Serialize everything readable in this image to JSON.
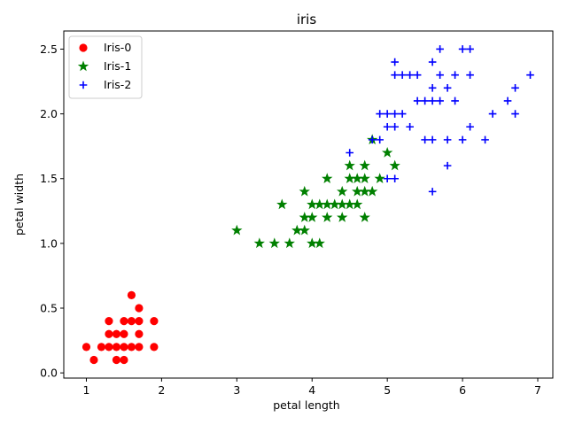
{
  "chart_data": {
    "type": "scatter",
    "title": "iris",
    "xlabel": "petal length",
    "ylabel": "petal width",
    "xlim": [
      0.7,
      7.2
    ],
    "ylim": [
      -0.04,
      2.64
    ],
    "xticks": [
      1,
      2,
      3,
      4,
      5,
      6,
      7
    ],
    "yticks": [
      0.0,
      0.5,
      1.0,
      1.5,
      2.0,
      2.5
    ],
    "xtick_labels": [
      "1",
      "2",
      "3",
      "4",
      "5",
      "6",
      "7"
    ],
    "ytick_labels": [
      "0.0",
      "0.5",
      "1.0",
      "1.5",
      "2.0",
      "2.5"
    ],
    "grid": false,
    "legend_position": "top-left",
    "series": [
      {
        "name": "Iris-0",
        "marker": "circle",
        "color": "#ff0000",
        "points": [
          [
            1.0,
            0.2
          ],
          [
            1.1,
            0.1
          ],
          [
            1.2,
            0.2
          ],
          [
            1.3,
            0.2
          ],
          [
            1.3,
            0.3
          ],
          [
            1.3,
            0.4
          ],
          [
            1.4,
            0.1
          ],
          [
            1.4,
            0.2
          ],
          [
            1.4,
            0.3
          ],
          [
            1.5,
            0.1
          ],
          [
            1.5,
            0.2
          ],
          [
            1.5,
            0.3
          ],
          [
            1.5,
            0.4
          ],
          [
            1.6,
            0.2
          ],
          [
            1.6,
            0.4
          ],
          [
            1.6,
            0.6
          ],
          [
            1.7,
            0.2
          ],
          [
            1.7,
            0.3
          ],
          [
            1.7,
            0.4
          ],
          [
            1.7,
            0.5
          ],
          [
            1.9,
            0.2
          ],
          [
            1.9,
            0.4
          ]
        ]
      },
      {
        "name": "Iris-1",
        "marker": "star",
        "color": "#008000",
        "points": [
          [
            3.0,
            1.1
          ],
          [
            3.3,
            1.0
          ],
          [
            3.5,
            1.0
          ],
          [
            3.6,
            1.3
          ],
          [
            3.7,
            1.0
          ],
          [
            3.8,
            1.1
          ],
          [
            3.9,
            1.1
          ],
          [
            3.9,
            1.2
          ],
          [
            3.9,
            1.4
          ],
          [
            4.0,
            1.0
          ],
          [
            4.0,
            1.2
          ],
          [
            4.0,
            1.3
          ],
          [
            4.1,
            1.0
          ],
          [
            4.1,
            1.3
          ],
          [
            4.2,
            1.2
          ],
          [
            4.2,
            1.3
          ],
          [
            4.2,
            1.5
          ],
          [
            4.3,
            1.3
          ],
          [
            4.4,
            1.2
          ],
          [
            4.4,
            1.3
          ],
          [
            4.4,
            1.4
          ],
          [
            4.5,
            1.3
          ],
          [
            4.5,
            1.5
          ],
          [
            4.5,
            1.6
          ],
          [
            4.6,
            1.3
          ],
          [
            4.6,
            1.4
          ],
          [
            4.6,
            1.5
          ],
          [
            4.7,
            1.2
          ],
          [
            4.7,
            1.4
          ],
          [
            4.7,
            1.5
          ],
          [
            4.7,
            1.6
          ],
          [
            4.8,
            1.4
          ],
          [
            4.8,
            1.8
          ],
          [
            4.9,
            1.5
          ],
          [
            5.0,
            1.7
          ],
          [
            5.1,
            1.6
          ]
        ]
      },
      {
        "name": "Iris-2",
        "marker": "plus",
        "color": "#0000ff",
        "points": [
          [
            4.5,
            1.7
          ],
          [
            4.8,
            1.8
          ],
          [
            4.9,
            1.8
          ],
          [
            4.9,
            2.0
          ],
          [
            5.0,
            1.5
          ],
          [
            5.0,
            1.9
          ],
          [
            5.0,
            2.0
          ],
          [
            5.1,
            1.5
          ],
          [
            5.1,
            1.9
          ],
          [
            5.1,
            2.0
          ],
          [
            5.1,
            2.3
          ],
          [
            5.1,
            2.4
          ],
          [
            5.2,
            2.0
          ],
          [
            5.2,
            2.3
          ],
          [
            5.3,
            1.9
          ],
          [
            5.3,
            2.3
          ],
          [
            5.4,
            2.1
          ],
          [
            5.4,
            2.3
          ],
          [
            5.5,
            1.8
          ],
          [
            5.5,
            2.1
          ],
          [
            5.6,
            1.4
          ],
          [
            5.6,
            1.8
          ],
          [
            5.6,
            2.1
          ],
          [
            5.6,
            2.2
          ],
          [
            5.6,
            2.4
          ],
          [
            5.7,
            2.1
          ],
          [
            5.7,
            2.3
          ],
          [
            5.7,
            2.5
          ],
          [
            5.8,
            1.6
          ],
          [
            5.8,
            1.8
          ],
          [
            5.8,
            2.2
          ],
          [
            5.9,
            2.1
          ],
          [
            5.9,
            2.3
          ],
          [
            6.0,
            1.8
          ],
          [
            6.0,
            2.5
          ],
          [
            6.1,
            1.9
          ],
          [
            6.1,
            2.3
          ],
          [
            6.1,
            2.5
          ],
          [
            6.3,
            1.8
          ],
          [
            6.4,
            2.0
          ],
          [
            6.6,
            2.1
          ],
          [
            6.7,
            2.0
          ],
          [
            6.7,
            2.2
          ],
          [
            6.9,
            2.3
          ]
        ]
      }
    ]
  }
}
